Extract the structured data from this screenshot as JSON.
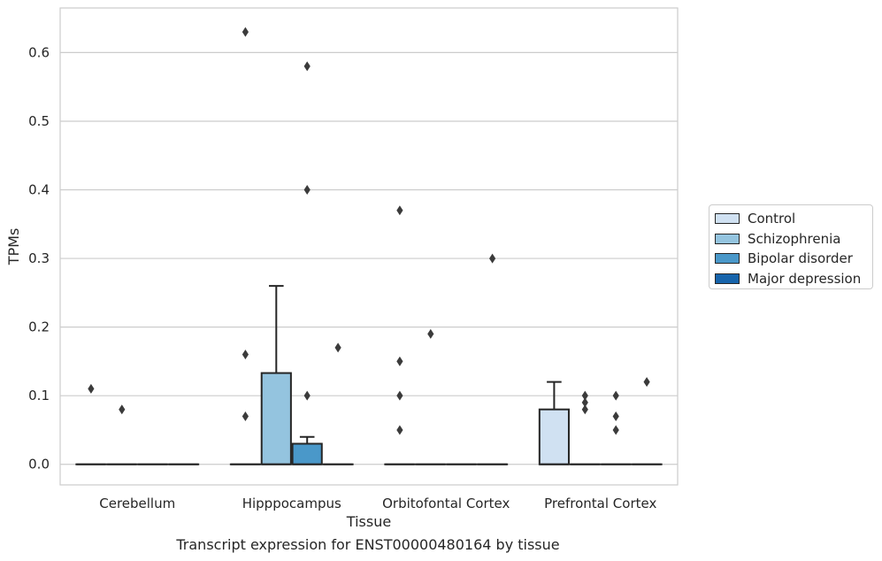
{
  "caption": "Transcript expression for ENST00000480164 by tissue",
  "colors": {
    "Control": "#d0e1f2",
    "Schizophrenia": "#94c4df",
    "Bipolar disorder": "#4a98c9",
    "Major depression": "#1764ab",
    "grid": "#cccccc",
    "ink": "#262626"
  },
  "chart_data": {
    "type": "box",
    "xlabel": "Tissue",
    "ylabel": "TPMs",
    "ylim": [
      -0.03,
      0.665
    ],
    "yticks": [
      0.0,
      0.1,
      0.2,
      0.3,
      0.4,
      0.5,
      0.6
    ],
    "ytick_labels": [
      "0.0",
      "0.1",
      "0.2",
      "0.3",
      "0.4",
      "0.5",
      "0.6"
    ],
    "grid": "horizontal",
    "legend_position": "right",
    "categories": [
      "Cerebellum",
      "Hipppocampus",
      "Orbitofontal Cortex",
      "Prefrontal Cortex"
    ],
    "series": [
      {
        "name": "Control",
        "boxes": [
          {
            "q1": 0,
            "median": 0,
            "q3": 0,
            "whisker_low": 0,
            "whisker_high": 0,
            "outliers": [
              0.11
            ]
          },
          {
            "q1": 0,
            "median": 0,
            "q3": 0,
            "whisker_low": 0,
            "whisker_high": 0,
            "outliers": [
              0.07,
              0.16,
              0.63
            ]
          },
          {
            "q1": 0,
            "median": 0,
            "q3": 0,
            "whisker_low": 0,
            "whisker_high": 0,
            "outliers": [
              0.05,
              0.1,
              0.15,
              0.37
            ]
          },
          {
            "q1": 0,
            "median": 0,
            "q3": 0.08,
            "whisker_low": 0,
            "whisker_high": 0.12,
            "outliers": []
          }
        ]
      },
      {
        "name": "Schizophrenia",
        "boxes": [
          {
            "q1": 0,
            "median": 0,
            "q3": 0,
            "whisker_low": 0,
            "whisker_high": 0,
            "outliers": [
              0.08
            ]
          },
          {
            "q1": 0,
            "median": 0,
            "q3": 0.133,
            "whisker_low": 0,
            "whisker_high": 0.26,
            "outliers": []
          },
          {
            "q1": 0,
            "median": 0,
            "q3": 0,
            "whisker_low": 0,
            "whisker_high": 0,
            "outliers": [
              0.19
            ]
          },
          {
            "q1": 0,
            "median": 0,
            "q3": 0,
            "whisker_low": 0,
            "whisker_high": 0,
            "outliers": [
              0.08,
              0.09,
              0.1
            ]
          }
        ]
      },
      {
        "name": "Bipolar disorder",
        "boxes": [
          {
            "q1": 0,
            "median": 0,
            "q3": 0,
            "whisker_low": 0,
            "whisker_high": 0,
            "outliers": []
          },
          {
            "q1": 0,
            "median": 0,
            "q3": 0.03,
            "whisker_low": 0,
            "whisker_high": 0.04,
            "outliers": [
              0.1,
              0.4,
              0.58
            ]
          },
          {
            "q1": 0,
            "median": 0,
            "q3": 0,
            "whisker_low": 0,
            "whisker_high": 0,
            "outliers": []
          },
          {
            "q1": 0,
            "median": 0,
            "q3": 0,
            "whisker_low": 0,
            "whisker_high": 0,
            "outliers": [
              0.05,
              0.07,
              0.1
            ]
          }
        ]
      },
      {
        "name": "Major depression",
        "boxes": [
          {
            "q1": 0,
            "median": 0,
            "q3": 0,
            "whisker_low": 0,
            "whisker_high": 0,
            "outliers": []
          },
          {
            "q1": 0,
            "median": 0,
            "q3": 0,
            "whisker_low": 0,
            "whisker_high": 0,
            "outliers": [
              0.17
            ]
          },
          {
            "q1": 0,
            "median": 0,
            "q3": 0,
            "whisker_low": 0,
            "whisker_high": 0,
            "outliers": [
              0.3
            ]
          },
          {
            "q1": 0,
            "median": 0,
            "q3": 0,
            "whisker_low": 0,
            "whisker_high": 0,
            "outliers": [
              0.12
            ]
          }
        ]
      }
    ]
  }
}
